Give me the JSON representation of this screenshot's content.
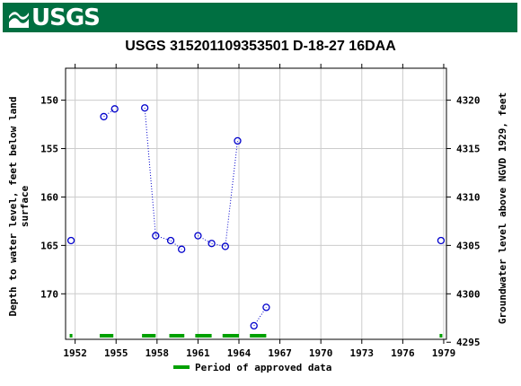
{
  "banner": {
    "logo_text": "USGS",
    "color": "#006f41"
  },
  "chart_data": {
    "type": "scatter",
    "title": "USGS 315201109353501 D-18-27 16DAA",
    "ylabel_left_lines": [
      "Depth to water level, feet below land",
      "surface"
    ],
    "ylabel_right": "Groundwater level above NGVD 1929, feet",
    "x_tick_labels": [
      "1952",
      "1955",
      "1958",
      "1961",
      "1964",
      "1967",
      "1970",
      "1973",
      "1976",
      "1979"
    ],
    "x_ticks": [
      1952,
      1955,
      1958,
      1961,
      1964,
      1967,
      1970,
      1973,
      1976,
      1979
    ],
    "xlim": [
      1951.3,
      1979.2
    ],
    "y_left_ticks": [
      150,
      155,
      160,
      165,
      170
    ],
    "y_left_tick_labels": [
      "150",
      "155",
      "160",
      "165",
      "170"
    ],
    "ylim_left_inverted": [
      146.7,
      174.7
    ],
    "y_right_ticks": [
      4295,
      4300,
      4305,
      4310,
      4315,
      4320
    ],
    "y_right_tick_labels": [
      "4295",
      "4300",
      "4305",
      "4310",
      "4315",
      "4320"
    ],
    "grid": true,
    "marker_color": "#0000cc",
    "series": [
      {
        "points": [
          {
            "x": 1951.7,
            "y": 164.5
          },
          {
            "x": 1954.1,
            "y": 151.7
          },
          {
            "x": 1954.9,
            "y": 150.9
          },
          {
            "x": 1957.1,
            "y": 150.8
          },
          {
            "x": 1957.9,
            "y": 164.0
          },
          {
            "x": 1959.0,
            "y": 164.5
          },
          {
            "x": 1959.8,
            "y": 165.4
          },
          {
            "x": 1961.0,
            "y": 164.0
          },
          {
            "x": 1962.0,
            "y": 164.8
          },
          {
            "x": 1963.0,
            "y": 165.1
          },
          {
            "x": 1963.9,
            "y": 154.2
          },
          {
            "x": 1965.1,
            "y": 173.3
          },
          {
            "x": 1966.0,
            "y": 171.4
          },
          {
            "x": 1978.8,
            "y": 164.5
          }
        ],
        "dotted_segments": [
          [
            1,
            2
          ],
          [
            3,
            4
          ],
          [
            4,
            5
          ],
          [
            5,
            6
          ],
          [
            7,
            8
          ],
          [
            8,
            9
          ],
          [
            9,
            10
          ],
          [
            11,
            12
          ]
        ]
      }
    ],
    "approved_periods": [
      [
        1951.6,
        1951.8
      ],
      [
        1953.8,
        1954.8
      ],
      [
        1956.9,
        1957.9
      ],
      [
        1958.9,
        1960.0
      ],
      [
        1960.8,
        1962.0
      ],
      [
        1962.8,
        1964.0
      ],
      [
        1964.8,
        1966.0
      ],
      [
        1978.7,
        1978.9
      ]
    ],
    "approved_color": "#00a000",
    "legend": {
      "label": "Period of approved data",
      "placement": "bottom-center"
    }
  }
}
